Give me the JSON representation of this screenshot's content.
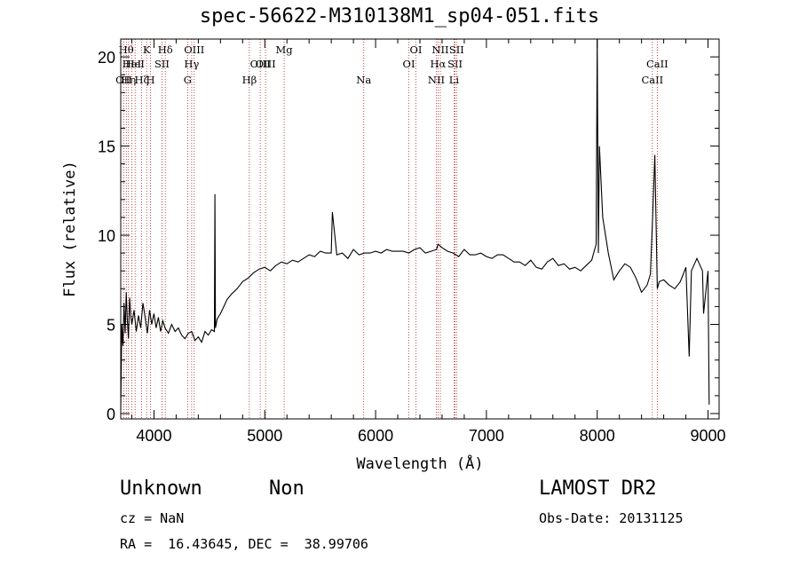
{
  "chart_data": {
    "type": "line",
    "title": "spec-56622-M310138M1_sp04-051.fits",
    "xlabel": "Wavelength (Å)",
    "ylabel": "Flux (relative)",
    "xlim": [
      3700,
      9100
    ],
    "ylim": [
      -0.3,
      21
    ],
    "xticks": [
      4000,
      5000,
      6000,
      7000,
      8000,
      9000
    ],
    "yticks": [
      0,
      5,
      10,
      15,
      20
    ],
    "grid": false,
    "series": [
      {
        "color": "#000000",
        "x": [
          3700,
          3710,
          3720,
          3730,
          3740,
          3750,
          3760,
          3770,
          3780,
          3790,
          3800,
          3820,
          3840,
          3860,
          3880,
          3900,
          3920,
          3940,
          3960,
          3980,
          4000,
          4020,
          4040,
          4060,
          4080,
          4100,
          4130,
          4160,
          4190,
          4220,
          4250,
          4280,
          4310,
          4340,
          4370,
          4400,
          4430,
          4460,
          4490,
          4520,
          4545,
          4550,
          4555,
          4570,
          4600,
          4630,
          4660,
          4700,
          4750,
          4800,
          4850,
          4900,
          4950,
          5000,
          5050,
          5100,
          5150,
          5200,
          5250,
          5300,
          5350,
          5400,
          5450,
          5500,
          5550,
          5600,
          5610,
          5650,
          5700,
          5750,
          5800,
          5850,
          5900,
          5950,
          6000,
          6050,
          6100,
          6150,
          6200,
          6250,
          6300,
          6350,
          6400,
          6450,
          6500,
          6550,
          6563,
          6600,
          6650,
          6700,
          6750,
          6800,
          6850,
          6900,
          6950,
          7000,
          7050,
          7100,
          7150,
          7200,
          7250,
          7300,
          7350,
          7400,
          7450,
          7500,
          7550,
          7600,
          7650,
          7700,
          7750,
          7800,
          7850,
          7900,
          7950,
          7990,
          8000,
          8010,
          8020,
          8050,
          8100,
          8150,
          8200,
          8250,
          8300,
          8350,
          8400,
          8450,
          8480,
          8500,
          8520,
          8542,
          8560,
          8600,
          8650,
          8700,
          8750,
          8800,
          8830,
          8850,
          8900,
          8950,
          8960,
          9000,
          9010
        ],
        "y": [
          0.2,
          5.0,
          3.8,
          6.2,
          4.5,
          6.8,
          5.2,
          4.2,
          6.5,
          5.5,
          5.0,
          5.8,
          4.6,
          5.5,
          4.8,
          6.2,
          5.4,
          4.5,
          5.8,
          5.0,
          5.6,
          4.8,
          5.4,
          4.6,
          5.2,
          4.8,
          4.5,
          5.0,
          4.6,
          4.8,
          4.4,
          4.2,
          4.5,
          4.6,
          4.1,
          4.3,
          4.0,
          4.6,
          4.4,
          4.7,
          4.6,
          12.3,
          4.8,
          5.3,
          5.6,
          6.0,
          6.4,
          6.7,
          7.0,
          7.4,
          7.6,
          7.9,
          8.1,
          8.2,
          8.0,
          8.3,
          8.5,
          8.4,
          8.6,
          8.5,
          8.7,
          8.9,
          8.8,
          9.1,
          9.0,
          9.0,
          11.3,
          8.9,
          9.0,
          8.7,
          9.2,
          8.9,
          9.0,
          9.0,
          9.1,
          9.0,
          9.2,
          9.1,
          9.1,
          9.1,
          9.0,
          9.2,
          9.3,
          9.0,
          9.1,
          9.2,
          9.5,
          9.3,
          9.1,
          9.0,
          8.8,
          9.2,
          8.9,
          8.9,
          9.0,
          8.8,
          8.7,
          8.9,
          8.9,
          8.7,
          8.5,
          8.5,
          8.3,
          8.6,
          8.2,
          8.1,
          8.5,
          8.7,
          8.3,
          8.4,
          8.1,
          8.2,
          8.0,
          8.3,
          8.6,
          9.5,
          21.0,
          9.0,
          15.0,
          11.0,
          9.0,
          7.5,
          8.0,
          8.4,
          8.2,
          7.6,
          6.8,
          7.2,
          7.8,
          11.0,
          14.5,
          7.0,
          7.4,
          7.5,
          7.2,
          7.0,
          7.4,
          8.2,
          3.2,
          8.0,
          8.7,
          8.0,
          5.6,
          8.0,
          0.5
        ]
      }
    ],
    "lines": [
      {
        "x": 3727,
        "label": "OII",
        "row": 3
      },
      {
        "x": 3750,
        "label": "Hθ",
        "row": 1
      },
      {
        "x": 3770,
        "label": "Hη",
        "row": 3
      },
      {
        "x": 3800,
        "label": "HeI",
        "row": 2
      },
      {
        "x": 3830,
        "label": "HeI",
        "row": 2
      },
      {
        "x": 3889,
        "label": "Hζ",
        "row": 3
      },
      {
        "x": 3934,
        "label": "K",
        "row": 1
      },
      {
        "x": 3969,
        "label": "H",
        "row": 3
      },
      {
        "x": 4072,
        "label": "SII",
        "row": 2
      },
      {
        "x": 4102,
        "label": "Hδ",
        "row": 1
      },
      {
        "x": 4304,
        "label": "G",
        "row": 3
      },
      {
        "x": 4340,
        "label": "Hγ",
        "row": 2
      },
      {
        "x": 4363,
        "label": "OIII",
        "row": 1
      },
      {
        "x": 4861,
        "label": "Hβ",
        "row": 3
      },
      {
        "x": 4959,
        "label": "OIII",
        "row": 2
      },
      {
        "x": 5007,
        "label": "OIII",
        "row": 2
      },
      {
        "x": 5175,
        "label": "Mg",
        "row": 1
      },
      {
        "x": 5893,
        "label": "Na",
        "row": 3
      },
      {
        "x": 6300,
        "label": "OI",
        "row": 2
      },
      {
        "x": 6364,
        "label": "OI",
        "row": 1
      },
      {
        "x": 6548,
        "label": "NII",
        "row": 3
      },
      {
        "x": 6563,
        "label": "Hα",
        "row": 2
      },
      {
        "x": 6584,
        "label": "NII",
        "row": 1
      },
      {
        "x": 6708,
        "label": "Li",
        "row": 3
      },
      {
        "x": 6717,
        "label": "SII",
        "row": 2
      },
      {
        "x": 6731,
        "label": "SII",
        "row": 1
      },
      {
        "x": 8498,
        "label": "CaII",
        "row": 3
      },
      {
        "x": 8542,
        "label": "CaII",
        "row": 2
      }
    ]
  },
  "info": {
    "class": "Unknown",
    "subclass": "Non",
    "cz": "cz = NaN",
    "coords": "RA =  16.43645, DEC =  38.99706",
    "survey": "LAMOST DR2",
    "obsdate": "Obs-Date: 20131125"
  }
}
